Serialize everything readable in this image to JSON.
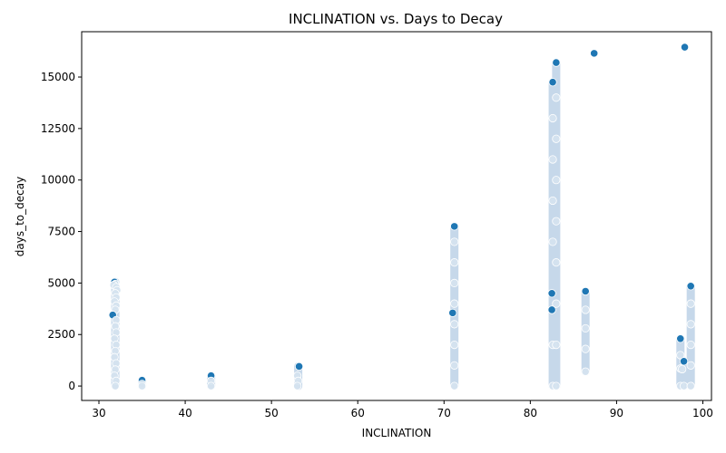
{
  "chart_data": {
    "type": "scatter",
    "title": "INCLINATION vs. Days to Decay",
    "xlabel": "INCLINATION",
    "ylabel": "days_to_decay",
    "xlim": [
      28,
      101
    ],
    "ylim": [
      -700,
      17200
    ],
    "xticks": [
      30,
      40,
      50,
      60,
      70,
      80,
      90,
      100
    ],
    "yticks": [
      0,
      2500,
      5000,
      7500,
      10000,
      12500,
      15000
    ],
    "grid": false,
    "legend": "none",
    "point_color": "#1f77b4",
    "point_edge_color": "#ffffff",
    "points": [
      {
        "x": 31.8,
        "y": 5050
      },
      {
        "x": 31.9,
        "y": 4950
      },
      {
        "x": 31.7,
        "y": 4900
      },
      {
        "x": 32.0,
        "y": 4800
      },
      {
        "x": 32.1,
        "y": 4650
      },
      {
        "x": 31.9,
        "y": 4500
      },
      {
        "x": 32.0,
        "y": 4300
      },
      {
        "x": 31.8,
        "y": 4100
      },
      {
        "x": 32.0,
        "y": 3900
      },
      {
        "x": 31.9,
        "y": 3700
      },
      {
        "x": 31.6,
        "y": 3450
      },
      {
        "x": 32.0,
        "y": 3200
      },
      {
        "x": 31.9,
        "y": 2900
      },
      {
        "x": 32.0,
        "y": 2600
      },
      {
        "x": 31.8,
        "y": 2300
      },
      {
        "x": 32.0,
        "y": 2000
      },
      {
        "x": 31.9,
        "y": 1700
      },
      {
        "x": 31.8,
        "y": 1400
      },
      {
        "x": 32.0,
        "y": 1100
      },
      {
        "x": 31.9,
        "y": 800
      },
      {
        "x": 31.8,
        "y": 500
      },
      {
        "x": 32.0,
        "y": 250
      },
      {
        "x": 31.9,
        "y": 0
      },
      {
        "x": 35.0,
        "y": 280
      },
      {
        "x": 35.0,
        "y": 100
      },
      {
        "x": 35.0,
        "y": 0
      },
      {
        "x": 43.0,
        "y": 500
      },
      {
        "x": 43.0,
        "y": 250
      },
      {
        "x": 43.0,
        "y": 0
      },
      {
        "x": 53.2,
        "y": 950
      },
      {
        "x": 53.0,
        "y": 500
      },
      {
        "x": 53.1,
        "y": 250
      },
      {
        "x": 53.0,
        "y": 0
      },
      {
        "x": 71.0,
        "y": 3550
      },
      {
        "x": 71.2,
        "y": 7750
      },
      {
        "x": 71.2,
        "y": 7000
      },
      {
        "x": 71.2,
        "y": 6000
      },
      {
        "x": 71.2,
        "y": 5000
      },
      {
        "x": 71.2,
        "y": 4000
      },
      {
        "x": 71.2,
        "y": 3000
      },
      {
        "x": 71.2,
        "y": 2000
      },
      {
        "x": 71.2,
        "y": 1000
      },
      {
        "x": 71.2,
        "y": 0
      },
      {
        "x": 82.6,
        "y": 14750
      },
      {
        "x": 82.6,
        "y": 13000
      },
      {
        "x": 82.6,
        "y": 11000
      },
      {
        "x": 82.6,
        "y": 9000
      },
      {
        "x": 82.6,
        "y": 7000
      },
      {
        "x": 82.5,
        "y": 4500
      },
      {
        "x": 82.5,
        "y": 3700
      },
      {
        "x": 82.6,
        "y": 2000
      },
      {
        "x": 82.6,
        "y": 0
      },
      {
        "x": 83.0,
        "y": 15700
      },
      {
        "x": 83.0,
        "y": 14000
      },
      {
        "x": 83.0,
        "y": 12000
      },
      {
        "x": 83.0,
        "y": 10000
      },
      {
        "x": 83.0,
        "y": 8000
      },
      {
        "x": 83.0,
        "y": 6000
      },
      {
        "x": 83.0,
        "y": 4000
      },
      {
        "x": 83.0,
        "y": 2000
      },
      {
        "x": 83.0,
        "y": 0
      },
      {
        "x": 86.4,
        "y": 4600
      },
      {
        "x": 86.4,
        "y": 3700
      },
      {
        "x": 86.4,
        "y": 2800
      },
      {
        "x": 86.4,
        "y": 1800
      },
      {
        "x": 86.4,
        "y": 700
      },
      {
        "x": 87.4,
        "y": 16150
      },
      {
        "x": 97.4,
        "y": 2300
      },
      {
        "x": 97.4,
        "y": 1500
      },
      {
        "x": 97.4,
        "y": 850
      },
      {
        "x": 97.4,
        "y": 0
      },
      {
        "x": 97.6,
        "y": 820
      },
      {
        "x": 97.8,
        "y": 1200
      },
      {
        "x": 97.8,
        "y": 0
      },
      {
        "x": 97.9,
        "y": 16450
      },
      {
        "x": 98.6,
        "y": 4850
      },
      {
        "x": 98.6,
        "y": 4000
      },
      {
        "x": 98.6,
        "y": 3000
      },
      {
        "x": 98.6,
        "y": 2000
      },
      {
        "x": 98.6,
        "y": 1000
      },
      {
        "x": 98.6,
        "y": 0
      }
    ],
    "bands": [
      {
        "x": 31.9,
        "y_min": 0,
        "y_max": 5050
      },
      {
        "x": 35.0,
        "y_min": 0,
        "y_max": 280
      },
      {
        "x": 43.0,
        "y_min": 0,
        "y_max": 500
      },
      {
        "x": 53.1,
        "y_min": 0,
        "y_max": 950
      },
      {
        "x": 71.2,
        "y_min": 0,
        "y_max": 7750
      },
      {
        "x": 82.6,
        "y_min": 0,
        "y_max": 14750
      },
      {
        "x": 83.0,
        "y_min": 0,
        "y_max": 15700
      },
      {
        "x": 86.4,
        "y_min": 700,
        "y_max": 4600
      },
      {
        "x": 97.4,
        "y_min": 0,
        "y_max": 2300
      },
      {
        "x": 97.8,
        "y_min": 0,
        "y_max": 1200
      },
      {
        "x": 98.6,
        "y_min": 0,
        "y_max": 4850
      }
    ]
  }
}
